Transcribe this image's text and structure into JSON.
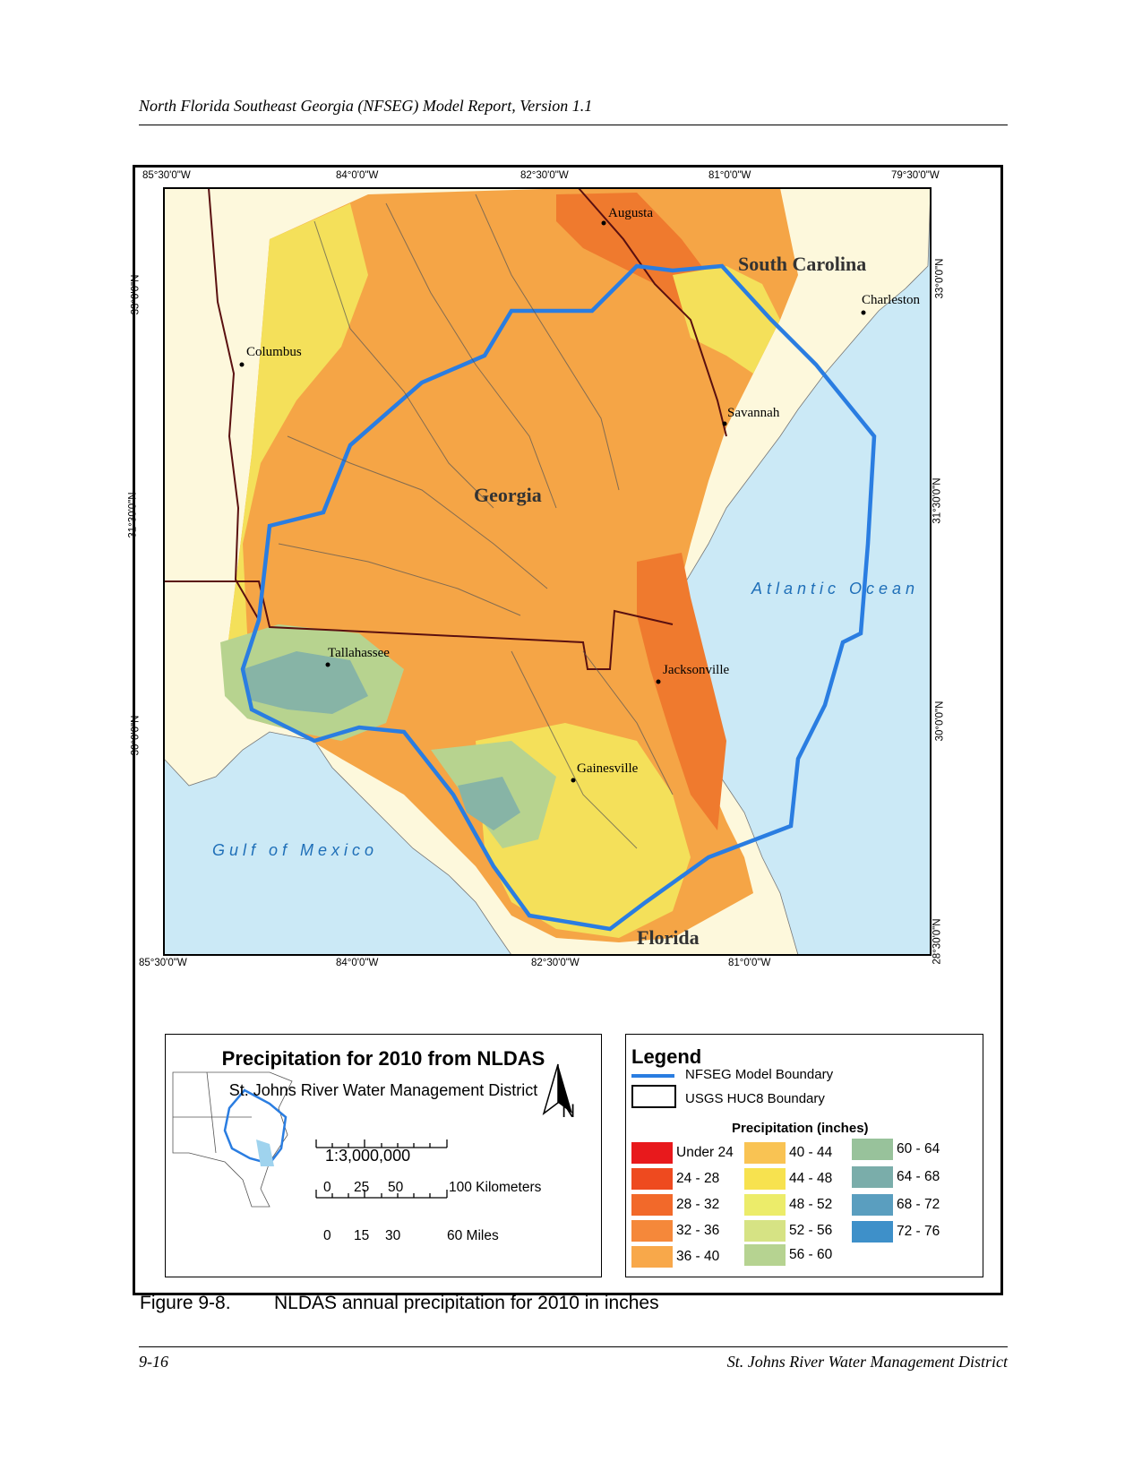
{
  "header": {
    "running_title": "North Florida Southeast Georgia (NFSEG) Model Report, Version 1.1"
  },
  "map": {
    "top_ticks": [
      "85°30'0\"W",
      "84°0'0\"W",
      "82°30'0\"W",
      "81°0'0\"W",
      "79°30'0\"W"
    ],
    "bottom_ticks": [
      "85°30'0\"W",
      "84°0'0\"W",
      "82°30'0\"W",
      "81°0'0\"W"
    ],
    "left_ticks": [
      "33°0'0\"N",
      "31°30'0\"N",
      "30°0'0\"N"
    ],
    "right_ticks": [
      "33°0'0\"N",
      "31°30'0\"N",
      "30°0'0\"N",
      "28°30'0\"N"
    ],
    "cities": {
      "augusta": "Augusta",
      "charleston": "Charleston",
      "columbus": "Columbus",
      "savannah": "Savannah",
      "tallahassee": "Tallahassee",
      "jacksonville": "Jacksonville",
      "gainesville": "Gainesville"
    },
    "regions": {
      "south_carolina": "South Carolina",
      "georgia": "Georgia",
      "florida": "Florida",
      "atlantic": "Atlantic Ocean",
      "gulf": "Gulf of Mexico"
    },
    "colors": {
      "water": "#cbe9f6",
      "land_outside": "#fdf8dc",
      "boundary": "#2a7de1"
    }
  },
  "title_panel": {
    "title": "Precipitation for 2010 from NLDAS",
    "subtitle": "St. Johns River Water Management District",
    "north_label": "N",
    "scale_ratio": "1:3,000,000",
    "km_ticks": [
      "0",
      "25",
      "50",
      "100 Kilometers"
    ],
    "mile_ticks": [
      "0",
      "15",
      "30",
      "60 Miles"
    ]
  },
  "legend": {
    "title": "Legend",
    "boundary_label": "NFSEG Model Boundary",
    "huc_label": "USGS HUC8 Boundary",
    "precip_heading": "Precipitation (inches)",
    "classes": [
      {
        "label": "Under 24",
        "color": "#e8191c"
      },
      {
        "label": "24 - 28",
        "color": "#ee4a1f"
      },
      {
        "label": "28 - 32",
        "color": "#f2692a"
      },
      {
        "label": "32 - 36",
        "color": "#f5883a"
      },
      {
        "label": "36 - 40",
        "color": "#f8a84a"
      },
      {
        "label": "40 - 44",
        "color": "#f9c353"
      },
      {
        "label": "44 - 48",
        "color": "#f7e24f"
      },
      {
        "label": "48 - 52",
        "color": "#ecec6a"
      },
      {
        "label": "52 - 56",
        "color": "#d6e384"
      },
      {
        "label": "56 - 60",
        "color": "#b6d391"
      },
      {
        "label": "60 - 64",
        "color": "#98c29b"
      },
      {
        "label": "64 - 68",
        "color": "#7aadaa"
      },
      {
        "label": "68 - 72",
        "color": "#5a9ebf"
      },
      {
        "label": "72 - 76",
        "color": "#3e90c9"
      }
    ]
  },
  "caption": {
    "label": "Figure 9-8.",
    "text": "NLDAS annual precipitation for 2010 in inches"
  },
  "footer": {
    "page": "9-16",
    "org": "St. Johns River Water Management District"
  }
}
